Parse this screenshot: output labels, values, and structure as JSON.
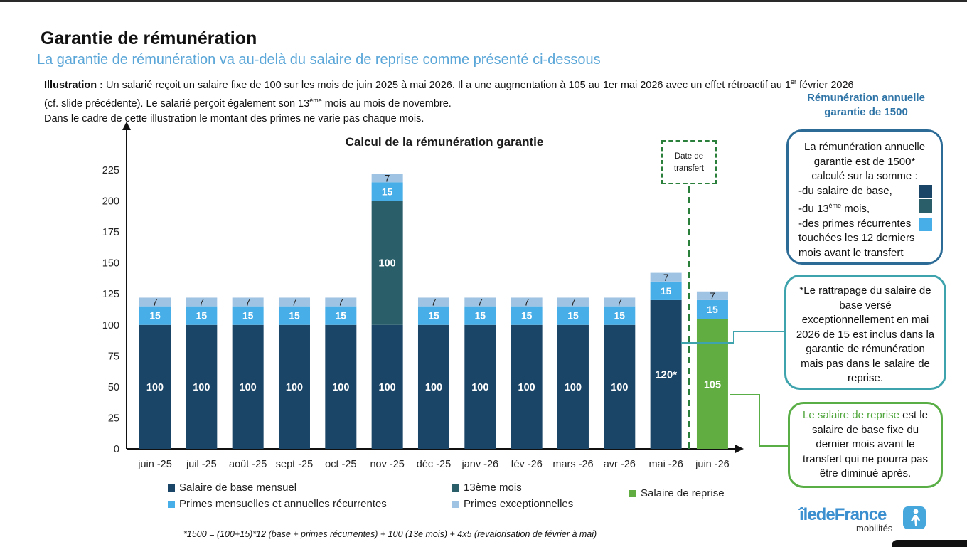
{
  "header": {
    "title": "Garantie de rémunération",
    "subtitle": "La garantie de rémunération va au-delà du salaire de reprise comme présenté ci-dessous"
  },
  "illustration": {
    "label": "Illustration :",
    "line1_a": "Un salarié reçoit un salaire fixe de 100 sur les mois de juin 2025 à mai 2026. Il a une augmentation à 105 au 1er mai 2026 avec un effet rétroactif au 1",
    "line1_sup": "er",
    "line1_b": " février 2026",
    "line2_a": "(cf. slide précédente). Le salarié perçoit également son 13",
    "line2_sup": "ème",
    "line2_b": " mois au mois de novembre.",
    "line3": "Dans le cadre de cette illustration le montant des primes ne varie pas chaque mois."
  },
  "transfer_marker": {
    "line1": "Date de",
    "line2": "transfert"
  },
  "annotations": {
    "title_line1": "Rémunération annuelle",
    "title_line2": "garantie de 1500",
    "box1": {
      "head": "La rémunération annuelle garantie est de 1500* calculé sur la somme :",
      "item1": "-du salaire de base,",
      "item2_a": "-du 13",
      "item2_sup": "ème",
      "item2_b": " mois,",
      "item3": "-des primes récurrentes touchées les 12 derniers mois avant le transfert"
    },
    "box2": "*Le rattrapage du salaire de base versé exceptionnellement en mai 2026 de 15 est inclus dans la garantie de rémunération mais pas dans le salaire de reprise.",
    "box3_highlight": "Le salaire de reprise",
    "box3_rest": " est le salaire de base fixe du dernier mois avant le transfert qui ne pourra pas être diminué après."
  },
  "footnote": "*1500 = (100+15)*12 (base + primes récurrentes) + 100 (13e mois) + 4x5 (revalorisation de février à mai)",
  "logo": {
    "main": "îledeFrance",
    "sub": "mobilités"
  },
  "colors": {
    "base": "#1b4566",
    "treizieme": "#2a5f6a",
    "primes_recurrentes": "#47aee8",
    "primes_exceptionnelles": "#9fc3e3",
    "reprise": "#62ad42"
  },
  "chart_data": {
    "type": "bar",
    "stacked": true,
    "title": "Calcul de la rémunération garantie",
    "xlabel": "",
    "ylabel": "",
    "ylim": [
      0,
      240
    ],
    "yticks": [
      0,
      25,
      50,
      75,
      100,
      125,
      150,
      175,
      200,
      225
    ],
    "categories": [
      "juin -25",
      "juil -25",
      "août -25",
      "sept -25",
      "oct -25",
      "nov -25",
      "déc -25",
      "janv -26",
      "fév -26",
      "mars -26",
      "avr -26",
      "mai -26",
      "juin -26"
    ],
    "series": [
      {
        "name": "Salaire de base mensuel",
        "key": "base",
        "values": [
          100,
          100,
          100,
          100,
          100,
          100,
          100,
          100,
          100,
          100,
          100,
          120,
          0
        ]
      },
      {
        "name": "13ème mois",
        "key": "treizieme",
        "values": [
          0,
          0,
          0,
          0,
          0,
          100,
          0,
          0,
          0,
          0,
          0,
          0,
          0
        ]
      },
      {
        "name": "Salaire de reprise",
        "key": "reprise",
        "values": [
          0,
          0,
          0,
          0,
          0,
          0,
          0,
          0,
          0,
          0,
          0,
          0,
          105
        ]
      },
      {
        "name": "Primes mensuelles et annuelles récurrentes",
        "key": "primes_recurrentes",
        "values": [
          15,
          15,
          15,
          15,
          15,
          15,
          15,
          15,
          15,
          15,
          15,
          15,
          15
        ]
      },
      {
        "name": "Primes exceptionnelles",
        "key": "primes_exceptionnelles",
        "values": [
          7,
          7,
          7,
          7,
          7,
          7,
          7,
          7,
          7,
          7,
          7,
          7,
          7
        ]
      }
    ],
    "data_labels": {
      "base": [
        "100",
        "100",
        "100",
        "100",
        "100",
        "100",
        "100",
        "100",
        "100",
        "100",
        "100",
        "120*",
        ""
      ],
      "treizieme": [
        "",
        "",
        "",
        "",
        "",
        "100",
        "",
        "",
        "",
        "",
        "",
        "",
        ""
      ],
      "reprise": [
        "",
        "",
        "",
        "",
        "",
        "",
        "",
        "",
        "",
        "",
        "",
        "",
        "105"
      ]
    },
    "transfer_after_category": "mai -26",
    "legend": "bottom"
  }
}
